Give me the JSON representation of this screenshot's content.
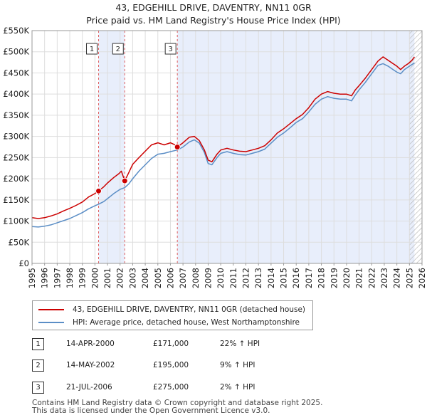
{
  "title_line1": "43, EDGEHILL DRIVE, DAVENTRY, NN11 0GR",
  "title_line2": "Price paid vs. HM Land Registry's House Price Index (HPI)",
  "chart_data": {
    "type": "line",
    "title": "43, EDGEHILL DRIVE, DAVENTRY, NN11 0GR — Price paid vs. HM Land Registry's House Price Index (HPI)",
    "xlabel": "",
    "ylabel": "",
    "xlim": [
      1995,
      2026
    ],
    "ylim": [
      0,
      550000
    ],
    "x_ticks": [
      "1995",
      "1996",
      "1997",
      "1998",
      "1999",
      "2000",
      "2001",
      "2002",
      "2003",
      "2004",
      "2005",
      "2006",
      "2007",
      "2008",
      "2009",
      "2010",
      "2011",
      "2012",
      "2013",
      "2014",
      "2015",
      "2016",
      "2017",
      "2018",
      "2019",
      "2020",
      "2021",
      "2022",
      "2023",
      "2024",
      "2025",
      "2026"
    ],
    "y_ticks": [
      "£0",
      "£50K",
      "£100K",
      "£150K",
      "£200K",
      "£250K",
      "£300K",
      "£350K",
      "£400K",
      "£450K",
      "£500K",
      "£550K"
    ],
    "grid": true,
    "series": [
      {
        "name": "43, EDGEHILL DRIVE, DAVENTRY, NN11 0GR (detached house)",
        "color": "#cc0000",
        "points": [
          [
            1995.0,
            108000
          ],
          [
            1995.5,
            106000
          ],
          [
            1996.0,
            108000
          ],
          [
            1996.5,
            112000
          ],
          [
            1997.0,
            117000
          ],
          [
            1997.5,
            124000
          ],
          [
            1998.0,
            130000
          ],
          [
            1998.5,
            137000
          ],
          [
            1999.0,
            145000
          ],
          [
            1999.5,
            157000
          ],
          [
            2000.0,
            165000
          ],
          [
            2000.29,
            171000
          ],
          [
            2000.7,
            181000
          ],
          [
            2001.0,
            190000
          ],
          [
            2001.5,
            203000
          ],
          [
            2001.9,
            212000
          ],
          [
            2002.1,
            218000
          ],
          [
            2002.37,
            195000
          ],
          [
            2002.7,
            215000
          ],
          [
            2003.0,
            234000
          ],
          [
            2003.5,
            250000
          ],
          [
            2004.0,
            265000
          ],
          [
            2004.5,
            280000
          ],
          [
            2005.0,
            285000
          ],
          [
            2005.5,
            280000
          ],
          [
            2006.0,
            285000
          ],
          [
            2006.3,
            281000
          ],
          [
            2006.55,
            275000
          ],
          [
            2007.0,
            285000
          ],
          [
            2007.5,
            298000
          ],
          [
            2007.9,
            300000
          ],
          [
            2008.3,
            290000
          ],
          [
            2008.7,
            268000
          ],
          [
            2009.0,
            244000
          ],
          [
            2009.3,
            240000
          ],
          [
            2009.7,
            258000
          ],
          [
            2010.0,
            268000
          ],
          [
            2010.5,
            272000
          ],
          [
            2011.0,
            268000
          ],
          [
            2011.5,
            265000
          ],
          [
            2012.0,
            264000
          ],
          [
            2012.5,
            268000
          ],
          [
            2013.0,
            272000
          ],
          [
            2013.5,
            278000
          ],
          [
            2014.0,
            292000
          ],
          [
            2014.5,
            308000
          ],
          [
            2015.0,
            318000
          ],
          [
            2015.5,
            330000
          ],
          [
            2016.0,
            342000
          ],
          [
            2016.5,
            352000
          ],
          [
            2017.0,
            368000
          ],
          [
            2017.5,
            388000
          ],
          [
            2018.0,
            400000
          ],
          [
            2018.5,
            406000
          ],
          [
            2019.0,
            402000
          ],
          [
            2019.5,
            400000
          ],
          [
            2020.0,
            400000
          ],
          [
            2020.4,
            396000
          ],
          [
            2020.7,
            410000
          ],
          [
            2021.0,
            420000
          ],
          [
            2021.5,
            438000
          ],
          [
            2022.0,
            458000
          ],
          [
            2022.5,
            478000
          ],
          [
            2022.9,
            488000
          ],
          [
            2023.3,
            480000
          ],
          [
            2023.7,
            472000
          ],
          [
            2024.0,
            466000
          ],
          [
            2024.3,
            458000
          ],
          [
            2024.6,
            466000
          ],
          [
            2024.9,
            472000
          ],
          [
            2025.2,
            480000
          ],
          [
            2025.4,
            488000
          ]
        ]
      },
      {
        "name": "HPI: Average price, detached house, West Northamptonshire",
        "color": "#5b8ec6",
        "points": [
          [
            1995.0,
            87000
          ],
          [
            1995.5,
            86000
          ],
          [
            1996.0,
            88000
          ],
          [
            1996.5,
            91000
          ],
          [
            1997.0,
            96000
          ],
          [
            1997.5,
            101000
          ],
          [
            1998.0,
            106000
          ],
          [
            1998.5,
            113000
          ],
          [
            1999.0,
            120000
          ],
          [
            1999.5,
            129000
          ],
          [
            2000.0,
            136000
          ],
          [
            2000.29,
            140000
          ],
          [
            2000.7,
            146000
          ],
          [
            2001.0,
            153000
          ],
          [
            2001.5,
            165000
          ],
          [
            2002.0,
            175000
          ],
          [
            2002.37,
            179000
          ],
          [
            2002.7,
            188000
          ],
          [
            2003.0,
            200000
          ],
          [
            2003.5,
            218000
          ],
          [
            2004.0,
            233000
          ],
          [
            2004.5,
            248000
          ],
          [
            2005.0,
            258000
          ],
          [
            2005.5,
            260000
          ],
          [
            2006.0,
            264000
          ],
          [
            2006.55,
            268000
          ],
          [
            2007.0,
            275000
          ],
          [
            2007.5,
            287000
          ],
          [
            2007.9,
            292000
          ],
          [
            2008.3,
            284000
          ],
          [
            2008.7,
            262000
          ],
          [
            2009.0,
            236000
          ],
          [
            2009.3,
            233000
          ],
          [
            2009.7,
            250000
          ],
          [
            2010.0,
            260000
          ],
          [
            2010.5,
            264000
          ],
          [
            2011.0,
            260000
          ],
          [
            2011.5,
            257000
          ],
          [
            2012.0,
            256000
          ],
          [
            2012.5,
            260000
          ],
          [
            2013.0,
            264000
          ],
          [
            2013.5,
            270000
          ],
          [
            2014.0,
            284000
          ],
          [
            2014.5,
            298000
          ],
          [
            2015.0,
            308000
          ],
          [
            2015.5,
            320000
          ],
          [
            2016.0,
            333000
          ],
          [
            2016.5,
            342000
          ],
          [
            2017.0,
            358000
          ],
          [
            2017.5,
            376000
          ],
          [
            2018.0,
            388000
          ],
          [
            2018.5,
            394000
          ],
          [
            2019.0,
            390000
          ],
          [
            2019.5,
            388000
          ],
          [
            2020.0,
            388000
          ],
          [
            2020.4,
            384000
          ],
          [
            2020.7,
            398000
          ],
          [
            2021.0,
            410000
          ],
          [
            2021.5,
            428000
          ],
          [
            2022.0,
            448000
          ],
          [
            2022.5,
            468000
          ],
          [
            2022.9,
            472000
          ],
          [
            2023.3,
            466000
          ],
          [
            2023.7,
            458000
          ],
          [
            2024.0,
            452000
          ],
          [
            2024.3,
            448000
          ],
          [
            2024.6,
            458000
          ],
          [
            2024.9,
            464000
          ],
          [
            2025.2,
            470000
          ],
          [
            2025.4,
            474000
          ]
        ]
      }
    ],
    "sales": [
      {
        "label": "1",
        "x": 2000.29,
        "price": 171000
      },
      {
        "label": "2",
        "x": 2002.37,
        "price": 195000
      },
      {
        "label": "3",
        "x": 2006.55,
        "price": 275000
      }
    ],
    "shaded_ranges": [
      [
        2000.29,
        2002.37
      ],
      [
        2006.55,
        2025.4
      ]
    ],
    "hatch_start_year": 2025.0
  },
  "legend": {
    "property_label": "43, EDGEHILL DRIVE, DAVENTRY, NN11 0GR (detached house)",
    "hpi_label": "HPI: Average price, detached house, West Northamptonshire",
    "property_color": "#cc0000",
    "hpi_color": "#5b8ec6"
  },
  "sales_table": [
    {
      "num": "1",
      "date": "14-APR-2000",
      "price": "£171,000",
      "hpi": "22% ↑ HPI"
    },
    {
      "num": "2",
      "date": "14-MAY-2002",
      "price": "£195,000",
      "hpi": "9% ↑ HPI"
    },
    {
      "num": "3",
      "date": "21-JUL-2006",
      "price": "£275,000",
      "hpi": "2% ↑ HPI"
    }
  ],
  "footer_line1": "Contains HM Land Registry data © Crown copyright and database right 2025.",
  "footer_line2": "This data is licensed under the Open Government Licence v3.0."
}
